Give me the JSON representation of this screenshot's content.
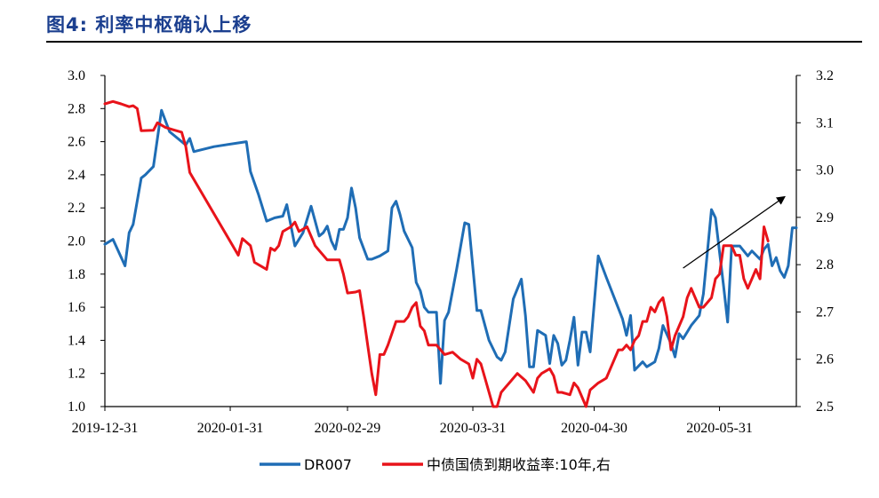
{
  "figure": {
    "title": "图4:  利率中枢确认上移"
  },
  "colors": {
    "dr007": "#1f6db5",
    "cgb10y": "#e8131a",
    "title": "#1b3f8f"
  },
  "chart_data": {
    "type": "line",
    "title": "利率中枢确认上移",
    "x_ticks": [
      "2019-12-31",
      "2020-01-31",
      "2020-02-29",
      "2020-03-31",
      "2020-04-30",
      "2020-05-31"
    ],
    "x_range": [
      "2019-12-31",
      "2020-06-19"
    ],
    "y_left": {
      "lim": [
        1.0,
        3.0
      ],
      "ticks": [
        "1.0",
        "1.2",
        "1.4",
        "1.6",
        "1.8",
        "2.0",
        "2.2",
        "2.4",
        "2.6",
        "2.8",
        "3.0"
      ]
    },
    "y_right": {
      "lim": [
        2.5,
        3.2
      ],
      "ticks": [
        "2.5",
        "2.6",
        "2.7",
        "2.8",
        "2.9",
        "3.0",
        "3.1",
        "3.2"
      ]
    },
    "annotation": "trend-up-arrow",
    "series": [
      {
        "name": "DR007",
        "axis": "left",
        "color": "#1f6db5",
        "points": [
          [
            0,
            1.98
          ],
          [
            2,
            2.01
          ],
          [
            5,
            1.85
          ],
          [
            6,
            2.05
          ],
          [
            7,
            2.1
          ],
          [
            9,
            2.38
          ],
          [
            10,
            2.4
          ],
          [
            12,
            2.45
          ],
          [
            14,
            2.79
          ],
          [
            16,
            2.66
          ],
          [
            20,
            2.58
          ],
          [
            21,
            2.62
          ],
          [
            22,
            2.54
          ],
          [
            27,
            2.57
          ],
          [
            35,
            2.6
          ],
          [
            36,
            2.42
          ],
          [
            38,
            2.28
          ],
          [
            40,
            2.12
          ],
          [
            42,
            2.14
          ],
          [
            44,
            2.15
          ],
          [
            45,
            2.22
          ],
          [
            47,
            1.97
          ],
          [
            49,
            2.05
          ],
          [
            51,
            2.21
          ],
          [
            52,
            2.12
          ],
          [
            53,
            2.03
          ],
          [
            54,
            2.05
          ],
          [
            55,
            2.09
          ],
          [
            56,
            2.0
          ],
          [
            57,
            1.95
          ],
          [
            58,
            2.07
          ],
          [
            59,
            2.07
          ],
          [
            60,
            2.14
          ],
          [
            61,
            2.32
          ],
          [
            62,
            2.2
          ],
          [
            63,
            2.02
          ],
          [
            65,
            1.89
          ],
          [
            66,
            1.89
          ],
          [
            68,
            1.91
          ],
          [
            70,
            1.94
          ],
          [
            71,
            2.2
          ],
          [
            72,
            2.24
          ],
          [
            73,
            2.16
          ],
          [
            74,
            2.06
          ],
          [
            76,
            1.96
          ],
          [
            77,
            1.75
          ],
          [
            78,
            1.7
          ],
          [
            79,
            1.6
          ],
          [
            80,
            1.57
          ],
          [
            82,
            1.57
          ],
          [
            83,
            1.14
          ],
          [
            84,
            1.52
          ],
          [
            85,
            1.57
          ],
          [
            87,
            1.83
          ],
          [
            89,
            2.11
          ],
          [
            90,
            2.1
          ],
          [
            92,
            1.58
          ],
          [
            93,
            1.58
          ],
          [
            95,
            1.4
          ],
          [
            97,
            1.3
          ],
          [
            98,
            1.28
          ],
          [
            99,
            1.33
          ],
          [
            101,
            1.65
          ],
          [
            103,
            1.77
          ],
          [
            104,
            1.55
          ],
          [
            105,
            1.24
          ],
          [
            106,
            1.24
          ],
          [
            107,
            1.46
          ],
          [
            109,
            1.43
          ],
          [
            110,
            1.26
          ],
          [
            111,
            1.43
          ],
          [
            112,
            1.38
          ],
          [
            113,
            1.25
          ],
          [
            114,
            1.28
          ],
          [
            115,
            1.4
          ],
          [
            116,
            1.54
          ],
          [
            117,
            1.25
          ],
          [
            118,
            1.45
          ],
          [
            119,
            1.45
          ],
          [
            120,
            1.33
          ],
          [
            122,
            1.91
          ],
          [
            124,
            1.78
          ],
          [
            128,
            1.53
          ],
          [
            129,
            1.43
          ],
          [
            130,
            1.55
          ],
          [
            131,
            1.22
          ],
          [
            133,
            1.27
          ],
          [
            134,
            1.24
          ],
          [
            136,
            1.27
          ],
          [
            137,
            1.35
          ],
          [
            138,
            1.49
          ],
          [
            140,
            1.38
          ],
          [
            141,
            1.3
          ],
          [
            142,
            1.44
          ],
          [
            143,
            1.41
          ],
          [
            144,
            1.45
          ],
          [
            145,
            1.49
          ],
          [
            147,
            1.55
          ],
          [
            148,
            1.68
          ],
          [
            150,
            2.19
          ],
          [
            151,
            2.14
          ],
          [
            153,
            1.73
          ],
          [
            154,
            1.51
          ],
          [
            155,
            1.97
          ],
          [
            157,
            1.97
          ],
          [
            159,
            1.91
          ],
          [
            160,
            1.94
          ],
          [
            162,
            1.89
          ],
          [
            163,
            1.95
          ],
          [
            164,
            1.98
          ],
          [
            165,
            1.85
          ],
          [
            166,
            1.9
          ],
          [
            167,
            1.82
          ],
          [
            168,
            1.78
          ],
          [
            169,
            1.85
          ],
          [
            170,
            2.08
          ],
          [
            171,
            2.08
          ]
        ]
      },
      {
        "name": "中债国债到期收益率:10年,右",
        "axis": "right",
        "color": "#e8131a",
        "points": [
          [
            0,
            3.14
          ],
          [
            2,
            3.145
          ],
          [
            4,
            3.14
          ],
          [
            6,
            3.134
          ],
          [
            7,
            3.136
          ],
          [
            8,
            3.13
          ],
          [
            9,
            3.083
          ],
          [
            12,
            3.084
          ],
          [
            13,
            3.1
          ],
          [
            15,
            3.09
          ],
          [
            17,
            3.085
          ],
          [
            19,
            3.08
          ],
          [
            20,
            3.05
          ],
          [
            21,
            2.995
          ],
          [
            33,
            2.82
          ],
          [
            34,
            2.855
          ],
          [
            36,
            2.84
          ],
          [
            37,
            2.805
          ],
          [
            39,
            2.795
          ],
          [
            40,
            2.79
          ],
          [
            41,
            2.835
          ],
          [
            42,
            2.83
          ],
          [
            43,
            2.84
          ],
          [
            44,
            2.87
          ],
          [
            46,
            2.88
          ],
          [
            47,
            2.89
          ],
          [
            48,
            2.87
          ],
          [
            50,
            2.88
          ],
          [
            52,
            2.84
          ],
          [
            53,
            2.83
          ],
          [
            55,
            2.81
          ],
          [
            56,
            2.81
          ],
          [
            58,
            2.81
          ],
          [
            59,
            2.78
          ],
          [
            60,
            2.74
          ],
          [
            62,
            2.742
          ],
          [
            63,
            2.745
          ],
          [
            64,
            2.69
          ],
          [
            65,
            2.63
          ],
          [
            66,
            2.57
          ],
          [
            67,
            2.525
          ],
          [
            68,
            2.61
          ],
          [
            69,
            2.61
          ],
          [
            70,
            2.63
          ],
          [
            72,
            2.68
          ],
          [
            74,
            2.68
          ],
          [
            75,
            2.69
          ],
          [
            76,
            2.71
          ],
          [
            77,
            2.72
          ],
          [
            78,
            2.67
          ],
          [
            79,
            2.66
          ],
          [
            80,
            2.63
          ],
          [
            82,
            2.63
          ],
          [
            84,
            2.61
          ],
          [
            86,
            2.615
          ],
          [
            88,
            2.6
          ],
          [
            90,
            2.59
          ],
          [
            91,
            2.56
          ],
          [
            92,
            2.6
          ],
          [
            93,
            2.59
          ],
          [
            94,
            2.56
          ],
          [
            96,
            2.5
          ],
          [
            97,
            2.5
          ],
          [
            98,
            2.53
          ],
          [
            99,
            2.54
          ],
          [
            100,
            2.55
          ],
          [
            102,
            2.57
          ],
          [
            104,
            2.555
          ],
          [
            106,
            2.53
          ],
          [
            107,
            2.56
          ],
          [
            108,
            2.57
          ],
          [
            110,
            2.58
          ],
          [
            111,
            2.565
          ],
          [
            112,
            2.53
          ],
          [
            113,
            2.53
          ],
          [
            115,
            2.525
          ],
          [
            116,
            2.55
          ],
          [
            117,
            2.54
          ],
          [
            119,
            2.5
          ],
          [
            120,
            2.535
          ],
          [
            122,
            2.55
          ],
          [
            124,
            2.56
          ],
          [
            125,
            2.58
          ],
          [
            127,
            2.62
          ],
          [
            128,
            2.62
          ],
          [
            129,
            2.63
          ],
          [
            130,
            2.62
          ],
          [
            131,
            2.64
          ],
          [
            132,
            2.65
          ],
          [
            133,
            2.68
          ],
          [
            134,
            2.68
          ],
          [
            135,
            2.71
          ],
          [
            136,
            2.7
          ],
          [
            137,
            2.72
          ],
          [
            138,
            2.73
          ],
          [
            139,
            2.69
          ],
          [
            140,
            2.62
          ],
          [
            141,
            2.65
          ],
          [
            143,
            2.69
          ],
          [
            144,
            2.73
          ],
          [
            145,
            2.75
          ],
          [
            147,
            2.71
          ],
          [
            148,
            2.71
          ],
          [
            150,
            2.73
          ],
          [
            151,
            2.77
          ],
          [
            152,
            2.78
          ],
          [
            153,
            2.84
          ],
          [
            155,
            2.84
          ],
          [
            156,
            2.82
          ],
          [
            157,
            2.82
          ],
          [
            158,
            2.77
          ],
          [
            159,
            2.75
          ],
          [
            160,
            2.77
          ],
          [
            161,
            2.79
          ],
          [
            162,
            2.77
          ],
          [
            163,
            2.88
          ],
          [
            164,
            2.85
          ]
        ]
      }
    ],
    "legend": {
      "position": "bottom-center",
      "entries": [
        "DR007",
        "中债国债到期收益率:10年,右"
      ]
    }
  }
}
